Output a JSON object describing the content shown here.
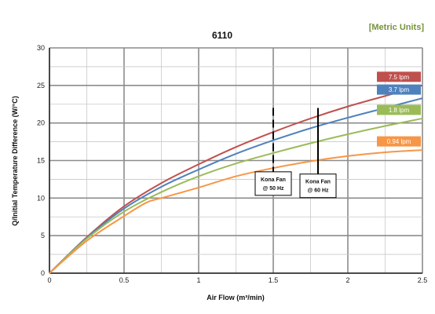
{
  "chart_data": {
    "type": "line",
    "title": "6110",
    "units_label": "[Metric Units]",
    "xlabel": "Air Flow (m³/min)",
    "ylabel": "Q/Initial Temperature Difference (W/°C)",
    "xlim": [
      0,
      2.5
    ],
    "ylim": [
      0,
      30
    ],
    "x_ticks": [
      "0",
      "0.5",
      "1",
      "1.5",
      "2",
      "2.5"
    ],
    "y_ticks": [
      "0",
      "5",
      "10",
      "15",
      "20",
      "25",
      "30"
    ],
    "grid": true,
    "legend": "right",
    "series": [
      {
        "name": "7.5  lpm",
        "color": "#c0504d",
        "x": [
          0,
          0.25,
          0.5,
          0.75,
          1.0,
          1.25,
          1.5,
          1.75,
          2.0,
          2.25,
          2.5
        ],
        "y": [
          0,
          4.8,
          8.9,
          12.0,
          14.5,
          16.8,
          18.8,
          20.6,
          22.2,
          23.6,
          25.0
        ]
      },
      {
        "name": "3.7  lpm",
        "color": "#4f81bd",
        "x": [
          0,
          0.25,
          0.5,
          0.75,
          1.0,
          1.25,
          1.5,
          1.75,
          2.0,
          2.25,
          2.5
        ],
        "y": [
          0,
          4.7,
          8.6,
          11.5,
          13.8,
          15.9,
          17.7,
          19.3,
          20.7,
          22.0,
          23.3
        ]
      },
      {
        "name": "1.8  lpm",
        "color": "#9bbb59",
        "x": [
          0,
          0.25,
          0.5,
          0.75,
          1.0,
          1.25,
          1.5,
          1.75,
          2.0,
          2.25,
          2.5
        ],
        "y": [
          0,
          4.6,
          8.2,
          10.8,
          12.9,
          14.6,
          16.0,
          17.3,
          18.5,
          19.6,
          20.6
        ]
      },
      {
        "name": "0.94  lpm",
        "color": "#f79646",
        "x": [
          0,
          0.25,
          0.5,
          0.65,
          0.75,
          1.0,
          1.25,
          1.5,
          1.75,
          2.0,
          2.25,
          2.5
        ],
        "y": [
          0,
          4.3,
          7.6,
          9.4,
          10.0,
          11.4,
          12.9,
          14.0,
          14.9,
          15.6,
          16.1,
          16.4
        ]
      }
    ],
    "annotations": [
      {
        "label_line1": "Kona Fan",
        "label_line2": "@ 50 Hz",
        "x": 1.5,
        "y_top": 22,
        "y_bottom": 13.5,
        "style": "dashed"
      },
      {
        "label_line1": "Kona Fan",
        "label_line2": "@ 60 Hz",
        "x": 1.8,
        "y_top": 22,
        "y_bottom": 13.2,
        "style": "solid"
      }
    ],
    "colors": {
      "units_label": "#77933c",
      "grid": "#9a9a9a",
      "axis": "#222222"
    }
  }
}
